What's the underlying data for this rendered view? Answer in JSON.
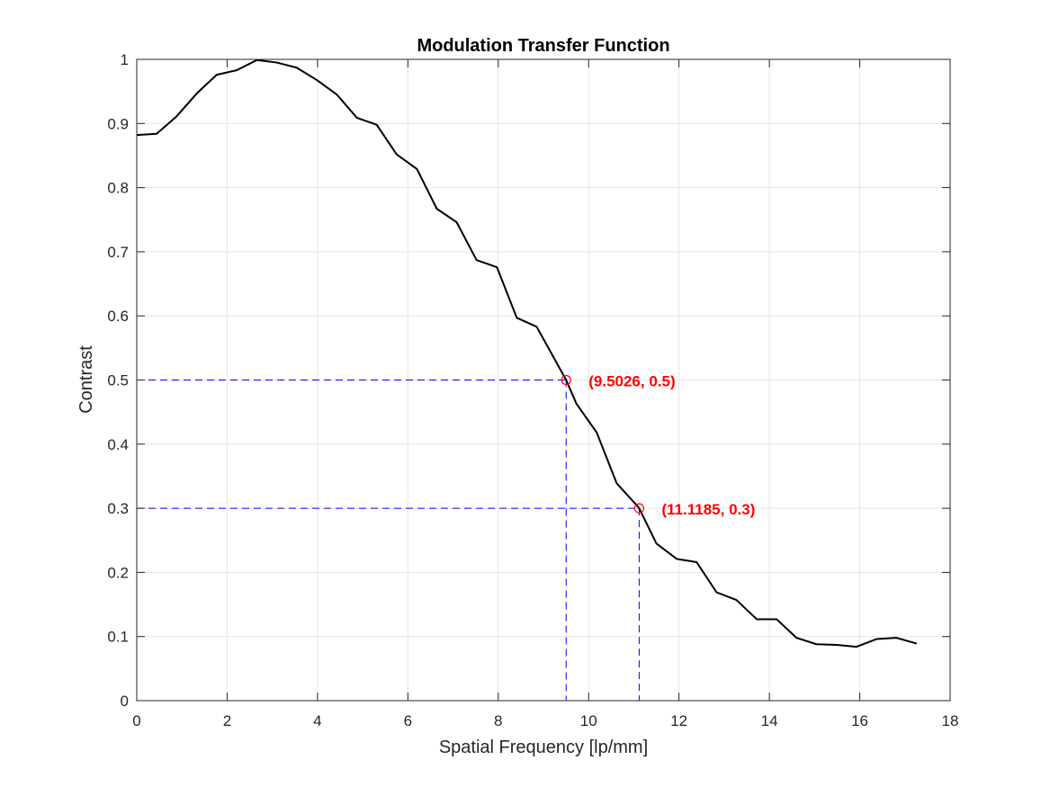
{
  "chart_data": {
    "type": "line",
    "title": "Modulation Transfer Function",
    "xlabel": "Spatial Frequency [lp/mm]",
    "ylabel": "Contrast",
    "xlim": [
      0,
      18
    ],
    "ylim": [
      0,
      1
    ],
    "xticks": [
      0,
      2,
      4,
      6,
      8,
      10,
      12,
      14,
      16,
      18
    ],
    "xtick_labels": [
      "0",
      "2",
      "4",
      "6",
      "8",
      "10",
      "12",
      "14",
      "16",
      "18"
    ],
    "yticks": [
      0,
      0.1,
      0.2,
      0.3,
      0.4,
      0.5,
      0.6,
      0.7,
      0.8,
      0.9,
      1
    ],
    "ytick_labels": [
      "0",
      "0.1",
      "0.2",
      "0.3",
      "0.4",
      "0.5",
      "0.6",
      "0.7",
      "0.8",
      "0.9",
      "1"
    ],
    "grid": true,
    "colors": {
      "line": "#000000",
      "marker": "#ff0000",
      "guide": "#0000ff",
      "annotation": "#ff0000",
      "grid": "#e5e5e5",
      "axes": "#262626"
    },
    "series": [
      {
        "x": [
          0,
          0.44,
          0.88,
          1.33,
          1.77,
          2.21,
          2.66,
          3.1,
          3.54,
          3.98,
          4.43,
          4.87,
          5.31,
          5.75,
          6.2,
          6.64,
          7.08,
          7.52,
          7.97,
          8.41,
          8.85,
          9.5026,
          9.73,
          10.18,
          10.62,
          11.06,
          11.1185,
          11.5,
          11.95,
          12.39,
          12.83,
          13.27,
          13.72,
          14.16,
          14.6,
          15.04,
          15.49,
          15.93,
          16.37,
          16.81,
          17.26
        ],
        "y": [
          0.882,
          0.884,
          0.911,
          0.947,
          0.976,
          0.983,
          0.999,
          0.995,
          0.987,
          0.968,
          0.945,
          0.909,
          0.898,
          0.852,
          0.829,
          0.767,
          0.746,
          0.687,
          0.676,
          0.597,
          0.583,
          0.5,
          0.463,
          0.418,
          0.339,
          0.305,
          0.3,
          0.245,
          0.221,
          0.216,
          0.169,
          0.157,
          0.127,
          0.127,
          0.098,
          0.088,
          0.087,
          0.084,
          0.096,
          0.098,
          0.089
        ]
      }
    ],
    "markers": [
      {
        "x": 9.5026,
        "y": 0.5,
        "label": "(9.5026, 0.5)"
      },
      {
        "x": 11.1185,
        "y": 0.3,
        "label": "(11.1185, 0.3)"
      }
    ]
  }
}
